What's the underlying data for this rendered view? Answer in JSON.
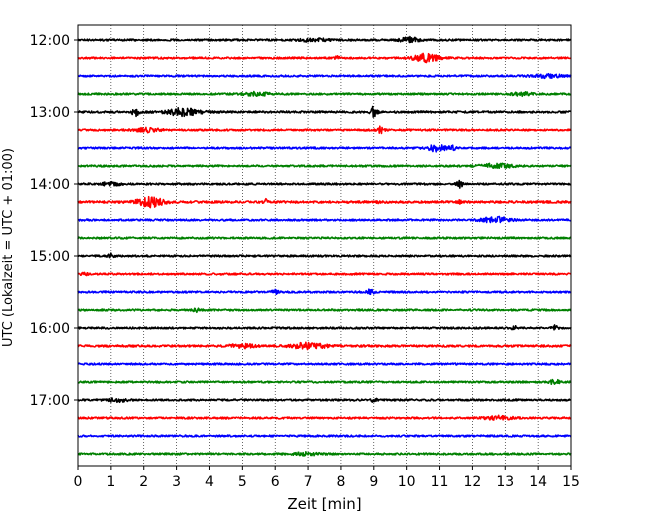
{
  "chart_data": {
    "type": "line",
    "title": "",
    "xlabel": "Zeit  [min]",
    "ylabel": "UTC (Lokalzeit = UTC + 01:00)",
    "xlim": [
      0,
      15
    ],
    "x_ticks": [
      0,
      1,
      2,
      3,
      4,
      5,
      6,
      7,
      8,
      9,
      10,
      11,
      12,
      13,
      14,
      15
    ],
    "x_tick_labels": [
      "0",
      "1",
      "2",
      "3",
      "4",
      "5",
      "6",
      "7",
      "8",
      "9",
      "10",
      "11",
      "12",
      "13",
      "14",
      "15"
    ],
    "y_tick_labels": [
      "12:00",
      "13:00",
      "14:00",
      "15:00",
      "16:00",
      "17:00"
    ],
    "y_tick_rows": [
      0,
      4,
      8,
      12,
      16,
      20
    ],
    "grid": "vertical dotted lines at each minute",
    "trace_colors": [
      "#000000",
      "#ff0000",
      "#0000ff",
      "#008000"
    ],
    "traces": [
      {
        "start": "12:00",
        "color": "#000000",
        "noise": 0.9,
        "events": [
          [
            7.2,
            1.4,
            0.5
          ],
          [
            10.1,
            2.5,
            0.3
          ]
        ]
      },
      {
        "start": "12:15",
        "color": "#ff0000",
        "noise": 0.9,
        "events": [
          [
            7.9,
            1.5,
            0.1
          ],
          [
            10.6,
            4.0,
            0.4
          ]
        ]
      },
      {
        "start": "12:30",
        "color": "#0000ff",
        "noise": 0.9,
        "events": [
          [
            14.3,
            1.5,
            0.5
          ]
        ]
      },
      {
        "start": "12:45",
        "color": "#008000",
        "noise": 0.9,
        "events": [
          [
            5.4,
            1.7,
            0.4
          ],
          [
            13.5,
            1.6,
            0.3
          ]
        ]
      },
      {
        "start": "13:00",
        "color": "#000000",
        "noise": 1.0,
        "events": [
          [
            1.75,
            5.0,
            0.1
          ],
          [
            3.2,
            3.5,
            0.5
          ],
          [
            9.0,
            5.0,
            0.1
          ]
        ]
      },
      {
        "start": "13:15",
        "color": "#ff0000",
        "noise": 0.9,
        "events": [
          [
            2.1,
            1.8,
            0.4
          ],
          [
            9.2,
            3.0,
            0.1
          ]
        ]
      },
      {
        "start": "13:30",
        "color": "#0000ff",
        "noise": 0.9,
        "events": [
          [
            10.9,
            3.5,
            0.3
          ],
          [
            11.4,
            2.0,
            0.1
          ]
        ]
      },
      {
        "start": "13:45",
        "color": "#008000",
        "noise": 0.9,
        "events": [
          [
            12.7,
            2.2,
            0.5
          ]
        ]
      },
      {
        "start": "14:00",
        "color": "#000000",
        "noise": 0.9,
        "events": [
          [
            1.0,
            1.5,
            0.3
          ],
          [
            11.6,
            4.0,
            0.1
          ]
        ]
      },
      {
        "start": "14:15",
        "color": "#ff0000",
        "noise": 1.1,
        "events": [
          [
            2.2,
            4.5,
            0.4
          ],
          [
            5.7,
            2.5,
            0.05
          ],
          [
            9.1,
            2.0,
            0.05
          ],
          [
            11.6,
            2.0,
            0.05
          ]
        ]
      },
      {
        "start": "14:30",
        "color": "#0000ff",
        "noise": 0.9,
        "events": [
          [
            12.7,
            3.0,
            0.4
          ]
        ]
      },
      {
        "start": "14:45",
        "color": "#008000",
        "noise": 0.9,
        "events": []
      },
      {
        "start": "15:00",
        "color": "#000000",
        "noise": 0.9,
        "events": [
          [
            1.0,
            2.0,
            0.1
          ]
        ]
      },
      {
        "start": "15:15",
        "color": "#ff0000",
        "noise": 0.9,
        "events": [
          [
            0.2,
            1.5,
            0.1
          ]
        ]
      },
      {
        "start": "15:30",
        "color": "#0000ff",
        "noise": 0.9,
        "events": [
          [
            6.0,
            2.5,
            0.1
          ],
          [
            8.9,
            2.8,
            0.1
          ]
        ]
      },
      {
        "start": "15:45",
        "color": "#008000",
        "noise": 0.9,
        "events": [
          [
            3.6,
            1.5,
            0.1
          ]
        ]
      },
      {
        "start": "16:00",
        "color": "#000000",
        "noise": 0.9,
        "events": [
          [
            14.5,
            2.5,
            0.1
          ],
          [
            13.3,
            1.8,
            0.1
          ]
        ]
      },
      {
        "start": "16:15",
        "color": "#ff0000",
        "noise": 1.0,
        "events": [
          [
            5.0,
            1.8,
            0.4
          ],
          [
            7.0,
            3.2,
            0.5
          ]
        ]
      },
      {
        "start": "16:30",
        "color": "#0000ff",
        "noise": 0.9,
        "events": []
      },
      {
        "start": "16:45",
        "color": "#008000",
        "noise": 0.9,
        "events": [
          [
            14.5,
            1.8,
            0.2
          ]
        ]
      },
      {
        "start": "17:00",
        "color": "#000000",
        "noise": 0.9,
        "events": [
          [
            1.2,
            1.8,
            0.3
          ],
          [
            9.0,
            1.6,
            0.1
          ]
        ]
      },
      {
        "start": "17:15",
        "color": "#ff0000",
        "noise": 0.9,
        "events": [
          [
            12.8,
            1.8,
            0.4
          ]
        ]
      },
      {
        "start": "17:30",
        "color": "#0000ff",
        "noise": 0.9,
        "events": []
      },
      {
        "start": "17:45",
        "color": "#008000",
        "noise": 0.9,
        "events": [
          [
            7.0,
            1.4,
            0.4
          ]
        ]
      }
    ]
  }
}
